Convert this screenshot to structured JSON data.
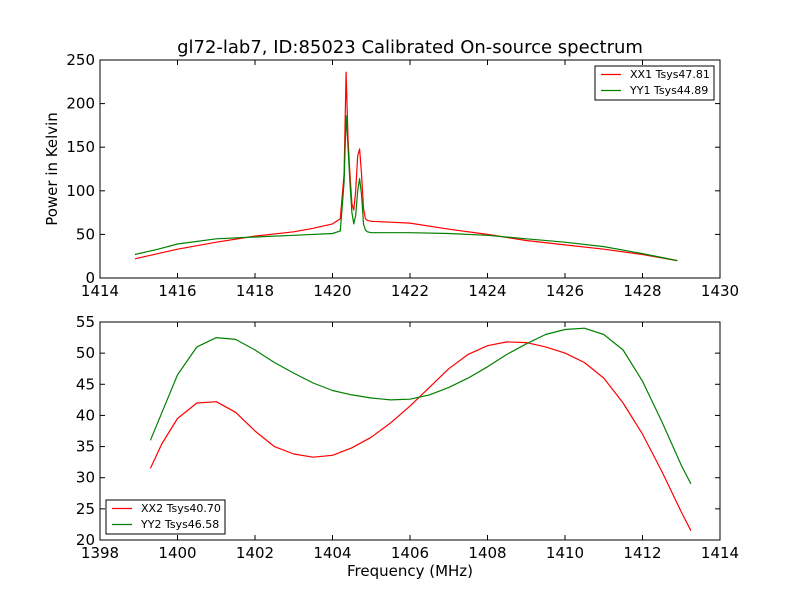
{
  "figure": {
    "title": "gl72-lab7, ID:85023 Calibrated On-source spectrum",
    "xlabel_bottom": "Frequency (MHz)"
  },
  "chart_data": [
    {
      "type": "line",
      "title": "gl72-lab7, ID:85023 Calibrated On-source spectrum",
      "xlabel": "",
      "ylabel": "Power in Kelvin",
      "xlim": [
        1414,
        1430
      ],
      "ylim": [
        0,
        250
      ],
      "xticks": [
        1414,
        1416,
        1418,
        1420,
        1422,
        1424,
        1426,
        1428,
        1430
      ],
      "yticks": [
        0,
        50,
        100,
        150,
        200,
        250
      ],
      "grid": false,
      "legend": "top-right",
      "series": [
        {
          "name": "XX1 Tsys47.81",
          "color": "#ff0000",
          "x": [
            1414.9,
            1415.5,
            1416,
            1417,
            1418,
            1419,
            1419.5,
            1420,
            1420.2,
            1420.3,
            1420.35,
            1420.4,
            1420.45,
            1420.5,
            1420.55,
            1420.6,
            1420.65,
            1420.7,
            1420.75,
            1420.8,
            1420.85,
            1420.9,
            1421,
            1421.5,
            1422,
            1423,
            1424,
            1425,
            1426,
            1427,
            1428,
            1428.9
          ],
          "y": [
            22,
            28,
            33,
            41,
            48,
            53,
            57,
            62,
            68,
            120,
            236,
            160,
            120,
            85,
            78,
            100,
            140,
            148,
            118,
            80,
            68,
            66,
            65,
            64,
            63,
            56,
            50,
            43,
            38,
            33,
            27,
            20
          ]
        },
        {
          "name": "YY1 Tsys44.89",
          "color": "#008000",
          "x": [
            1414.9,
            1415.5,
            1416,
            1417,
            1418,
            1419,
            1420,
            1420.2,
            1420.3,
            1420.35,
            1420.4,
            1420.45,
            1420.5,
            1420.55,
            1420.6,
            1420.65,
            1420.7,
            1420.75,
            1420.8,
            1420.85,
            1420.9,
            1421,
            1422,
            1423,
            1424,
            1425,
            1426,
            1427,
            1428,
            1428.9
          ],
          "y": [
            27,
            33,
            39,
            45,
            47,
            49,
            51,
            54,
            110,
            186,
            150,
            110,
            75,
            62,
            72,
            100,
            114,
            95,
            62,
            55,
            53,
            52,
            52,
            51,
            49,
            45,
            41,
            36,
            28,
            20
          ]
        }
      ]
    },
    {
      "type": "line",
      "title": "",
      "xlabel": "Frequency (MHz)",
      "ylabel": "",
      "xlim": [
        1398,
        1414
      ],
      "ylim": [
        20,
        55
      ],
      "xticks": [
        1398,
        1400,
        1402,
        1404,
        1406,
        1408,
        1410,
        1412,
        1414
      ],
      "yticks": [
        20,
        25,
        30,
        35,
        40,
        45,
        50,
        55
      ],
      "grid": false,
      "legend": "bottom-left",
      "series": [
        {
          "name": "XX2 Tsys40.70",
          "color": "#ff0000",
          "x": [
            1399.3,
            1399.6,
            1400,
            1400.5,
            1401,
            1401.5,
            1402,
            1402.5,
            1403,
            1403.5,
            1404,
            1404.5,
            1405,
            1405.5,
            1406,
            1406.5,
            1407,
            1407.5,
            1408,
            1408.5,
            1409,
            1409.5,
            1410,
            1410.5,
            1411,
            1411.5,
            1412,
            1412.5,
            1413,
            1413.25
          ],
          "y": [
            31.5,
            35.5,
            39.5,
            42,
            42.2,
            40.5,
            37.5,
            35,
            33.8,
            33.3,
            33.6,
            34.8,
            36.5,
            38.8,
            41.5,
            44.5,
            47.5,
            49.8,
            51.2,
            51.8,
            51.7,
            51,
            50,
            48.5,
            46,
            42,
            37,
            31,
            24.5,
            21.5
          ]
        },
        {
          "name": "YY2 Tsys46.58",
          "color": "#008000",
          "x": [
            1399.3,
            1399.6,
            1400,
            1400.5,
            1401,
            1401.5,
            1402,
            1402.5,
            1403,
            1403.5,
            1404,
            1404.5,
            1405,
            1405.5,
            1406,
            1406.5,
            1407,
            1407.5,
            1408,
            1408.5,
            1409,
            1409.5,
            1410,
            1410.5,
            1411,
            1411.5,
            1412,
            1412.5,
            1413,
            1413.25
          ],
          "y": [
            36,
            40.5,
            46.5,
            51,
            52.5,
            52.2,
            50.5,
            48.5,
            46.8,
            45.2,
            44,
            43.3,
            42.8,
            42.5,
            42.6,
            43.3,
            44.5,
            46,
            47.8,
            49.8,
            51.5,
            53,
            53.8,
            54,
            53,
            50.5,
            45.5,
            39,
            32,
            29
          ]
        }
      ]
    }
  ]
}
